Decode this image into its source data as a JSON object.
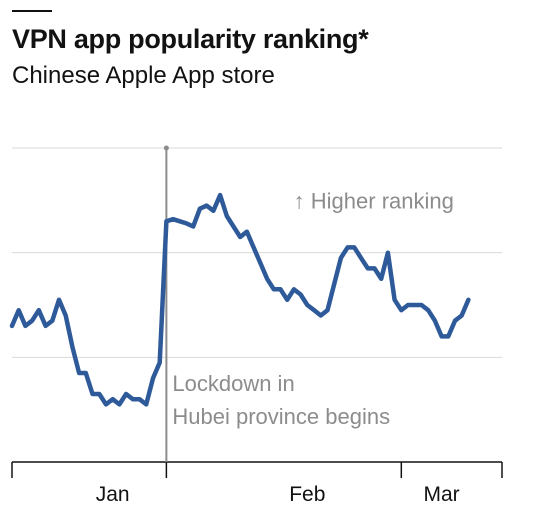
{
  "title": "VPN app popularity ranking*",
  "subtitle": "Chinese Apple App store",
  "colors": {
    "series": "#2f5a9a",
    "annotation": "#8c8c8c",
    "grid": "#d9d9d9",
    "axis": "#121212"
  },
  "chart_data": {
    "type": "line",
    "title": "VPN app popularity ranking*",
    "subtitle": "Chinese Apple App store",
    "xlabel": "",
    "ylabel": "",
    "y_direction": "up = higher ranking",
    "y_scale": "relative ranking index (unlabelled axis)",
    "ylim": [
      0,
      3
    ],
    "xlim": [
      0,
      73
    ],
    "x_tick_labels": [
      {
        "x": 15,
        "label": "Jan"
      },
      {
        "x": 44,
        "label": "Feb"
      },
      {
        "x": 64,
        "label": "Mar"
      }
    ],
    "x_ticks": [
      0,
      23,
      58,
      73
    ],
    "grid": true,
    "series": [
      {
        "values": [
          [
            0,
            1.3
          ],
          [
            1,
            1.45
          ],
          [
            2,
            1.3
          ],
          [
            3,
            1.35
          ],
          [
            4,
            1.45
          ],
          [
            5,
            1.3
          ],
          [
            6,
            1.35
          ],
          [
            7,
            1.55
          ],
          [
            8,
            1.4
          ],
          [
            9,
            1.1
          ],
          [
            10,
            0.85
          ],
          [
            11,
            0.85
          ],
          [
            12,
            0.65
          ],
          [
            13,
            0.65
          ],
          [
            14,
            0.55
          ],
          [
            15,
            0.6
          ],
          [
            16,
            0.55
          ],
          [
            17,
            0.65
          ],
          [
            18,
            0.6
          ],
          [
            19,
            0.6
          ],
          [
            20,
            0.55
          ],
          [
            21,
            0.8
          ],
          [
            22,
            0.95
          ],
          [
            23,
            2.3
          ],
          [
            24,
            2.32
          ],
          [
            25,
            2.3
          ],
          [
            26,
            2.28
          ],
          [
            27,
            2.25
          ],
          [
            28,
            2.42
          ],
          [
            29,
            2.45
          ],
          [
            30,
            2.4
          ],
          [
            31,
            2.55
          ],
          [
            32,
            2.35
          ],
          [
            33,
            2.25
          ],
          [
            34,
            2.15
          ],
          [
            35,
            2.2
          ],
          [
            36,
            2.05
          ],
          [
            37,
            1.9
          ],
          [
            38,
            1.75
          ],
          [
            39,
            1.65
          ],
          [
            40,
            1.65
          ],
          [
            41,
            1.55
          ],
          [
            42,
            1.65
          ],
          [
            43,
            1.6
          ],
          [
            44,
            1.5
          ],
          [
            45,
            1.45
          ],
          [
            46,
            1.4
          ],
          [
            47,
            1.45
          ],
          [
            48,
            1.7
          ],
          [
            49,
            1.95
          ],
          [
            50,
            2.05
          ],
          [
            51,
            2.05
          ],
          [
            52,
            1.95
          ],
          [
            53,
            1.85
          ],
          [
            54,
            1.85
          ],
          [
            55,
            1.75
          ],
          [
            56,
            2.0
          ],
          [
            57,
            1.55
          ],
          [
            58,
            1.45
          ],
          [
            59,
            1.5
          ],
          [
            60,
            1.5
          ],
          [
            61,
            1.5
          ],
          [
            62,
            1.45
          ],
          [
            63,
            1.35
          ],
          [
            64,
            1.2
          ],
          [
            65,
            1.2
          ],
          [
            66,
            1.35
          ],
          [
            67,
            1.4
          ],
          [
            68,
            1.55
          ]
        ]
      }
    ],
    "annotations": [
      {
        "text": "↑ Higher ranking",
        "x": 53,
        "y": 2.5
      },
      {
        "text_lines": [
          "Lockdown in",
          "Hubei province begins"
        ],
        "x": 23,
        "y": 0.6
      }
    ],
    "event_marker_x": 23
  }
}
